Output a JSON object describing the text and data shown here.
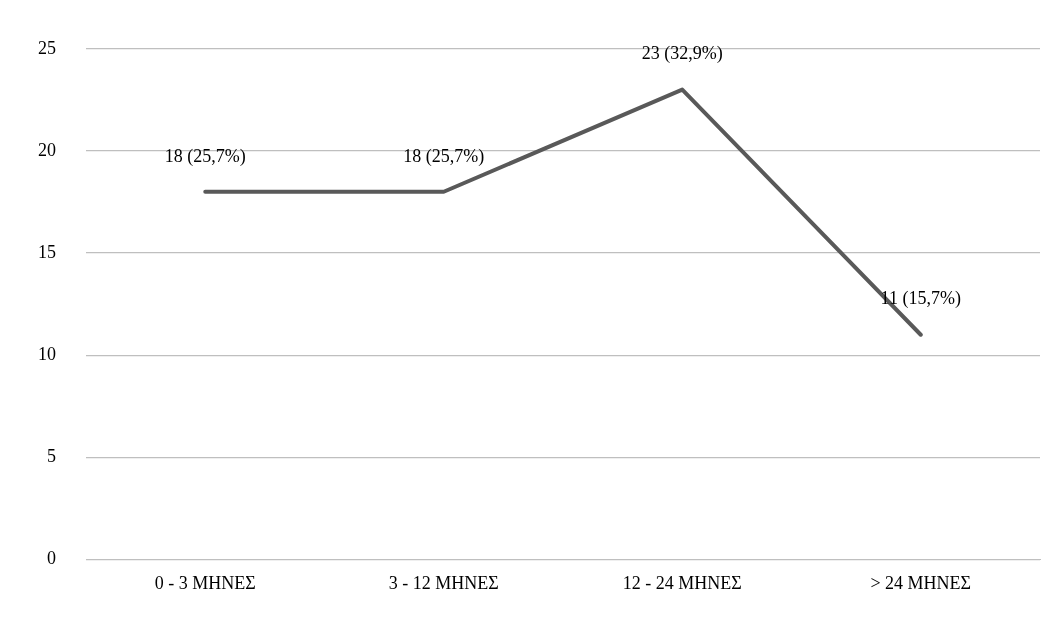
{
  "chart_data": {
    "type": "line",
    "categories": [
      "0 - 3 ΜΗΝΕΣ",
      "3 - 12 ΜΗΝΕΣ",
      "12 - 24 ΜΗΝΕΣ",
      "> 24 ΜΗΝΕΣ"
    ],
    "series": [
      {
        "color": "#595959",
        "values": [
          18,
          18,
          23,
          11
        ],
        "value_labels": [
          "18 (25,7%)",
          "18 (25,7%)",
          "23 (32,9%)",
          "11 (15,7%)"
        ]
      }
    ],
    "ylim": [
      0,
      25
    ],
    "yticks": [
      0,
      5,
      10,
      15,
      20,
      25
    ],
    "grid": "y",
    "legend": false,
    "marker": "none",
    "line_style": "solid"
  }
}
